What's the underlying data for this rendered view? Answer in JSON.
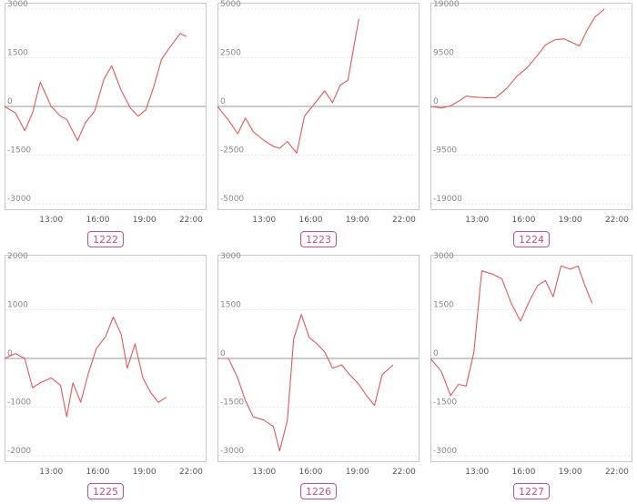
{
  "colors": {
    "line": "#e05a5a",
    "badge": "#c8508a",
    "frame": "#c9c9c9",
    "grid": "#e6e6e6",
    "zero": "#9a9a9a",
    "tick": "#888888"
  },
  "chart_data": [
    {
      "type": "line",
      "title": "",
      "label": "1222",
      "ylim": [
        -3000,
        3000
      ],
      "yticks": [
        -3000,
        -1500,
        0,
        1500,
        3000
      ],
      "xlim": [
        10,
        23
      ],
      "xticks": [
        13,
        16,
        19,
        22
      ],
      "xtick_labels": [
        "13:00",
        "16:00",
        "19:00",
        "22:00"
      ],
      "grid": true,
      "series": [
        {
          "x": [
            10,
            10.7,
            11.3,
            11.8,
            12.3,
            13,
            13.6,
            14,
            14.7,
            15.2,
            15.8,
            16.4,
            16.9,
            17.5,
            18.1,
            18.6,
            19.1,
            19.6,
            20.1,
            20.6,
            21.3,
            21.7
          ],
          "y": [
            0,
            -200,
            -750,
            -200,
            750,
            0,
            -300,
            -400,
            -1050,
            -500,
            -150,
            850,
            1250,
            500,
            -50,
            -300,
            -100,
            600,
            1450,
            1800,
            2250,
            2150
          ]
        }
      ]
    },
    {
      "type": "line",
      "title": "",
      "label": "1223",
      "ylim": [
        -5000,
        5000
      ],
      "yticks": [
        -5000,
        -2500,
        0,
        2500,
        5000
      ],
      "xlim": [
        10,
        23
      ],
      "xticks": [
        13,
        16,
        19,
        22
      ],
      "xtick_labels": [
        "13:00",
        "16:00",
        "19:00",
        "22:00"
      ],
      "grid": true,
      "series": [
        {
          "x": [
            10,
            10.7,
            11.3,
            11.8,
            12.3,
            13,
            13.6,
            14,
            14.5,
            15.1,
            15.6,
            16.2,
            16.9,
            17.4,
            17.9,
            18.4,
            18.8,
            19.1
          ],
          "y": [
            0,
            -700,
            -1400,
            -600,
            -1300,
            -1750,
            -2050,
            -2150,
            -1800,
            -2400,
            -500,
            100,
            800,
            200,
            1100,
            1350,
            3200,
            4500
          ]
        }
      ]
    },
    {
      "type": "line",
      "title": "",
      "label": "1224",
      "ylim": [
        -19000,
        19000
      ],
      "yticks": [
        -19000,
        -9500,
        0,
        9500,
        19000
      ],
      "xlim": [
        10,
        23
      ],
      "xticks": [
        13,
        16,
        19,
        22
      ],
      "xtick_labels": [
        "13:00",
        "16:00",
        "19:00",
        "22:00"
      ],
      "grid": true,
      "series": [
        {
          "x": [
            10,
            10.7,
            11.3,
            11.8,
            12.3,
            13,
            13.6,
            14.2,
            14.9,
            15.6,
            16.2,
            16.9,
            17.4,
            18,
            18.6,
            19.1,
            19.6,
            20.1,
            20.6,
            21.2
          ],
          "y": [
            0,
            -300,
            100,
            1000,
            2000,
            1800,
            1700,
            1700,
            3500,
            6000,
            7500,
            10000,
            12000,
            13000,
            13200,
            12500,
            11800,
            15000,
            17500,
            19000
          ]
        }
      ]
    },
    {
      "type": "line",
      "title": "",
      "label": "1225",
      "ylim": [
        -2000,
        2000
      ],
      "yticks": [
        -2000,
        -1000,
        0,
        1000,
        2000
      ],
      "xlim": [
        10,
        23
      ],
      "xticks": [
        13,
        16,
        19,
        22
      ],
      "xtick_labels": [
        "13:00",
        "16:00",
        "19:00",
        "22:00"
      ],
      "grid": true,
      "series": [
        {
          "x": [
            10,
            10.7,
            11.3,
            11.8,
            12.3,
            13,
            13.6,
            14,
            14.4,
            14.9,
            15.4,
            15.9,
            16.5,
            17,
            17.5,
            17.9,
            18.4,
            18.9,
            19.4,
            19.9,
            20.4
          ],
          "y": [
            0,
            100,
            0,
            -600,
            -500,
            -400,
            -550,
            -1200,
            -500,
            -900,
            -300,
            200,
            450,
            850,
            500,
            -200,
            300,
            -400,
            -700,
            -900,
            -800
          ]
        }
      ]
    },
    {
      "type": "line",
      "title": "",
      "label": "1226",
      "ylim": [
        -3000,
        3000
      ],
      "yticks": [
        -3000,
        -1500,
        0,
        1500,
        3000
      ],
      "xlim": [
        10,
        23
      ],
      "xticks": [
        13,
        16,
        19,
        22
      ],
      "xtick_labels": [
        "13:00",
        "16:00",
        "19:00",
        "22:00"
      ],
      "grid": true,
      "series": [
        {
          "x": [
            10,
            10.7,
            11.3,
            11.8,
            12.3,
            13,
            13.6,
            14,
            14.5,
            14.9,
            15.4,
            15.9,
            16.4,
            16.9,
            17.4,
            18,
            18.5,
            19.1,
            19.6,
            20.1,
            20.6,
            21.3
          ],
          "y": [
            0,
            0,
            -600,
            -1300,
            -1800,
            -1900,
            -2100,
            -2850,
            -1900,
            600,
            1350,
            650,
            450,
            200,
            -300,
            -200,
            -500,
            -800,
            -1150,
            -1450,
            -500,
            -200
          ]
        }
      ]
    },
    {
      "type": "line",
      "title": "",
      "label": "1227",
      "ylim": [
        -3000,
        3000
      ],
      "yticks": [
        -3000,
        -1500,
        0,
        1500,
        3000
      ],
      "xlim": [
        10,
        23
      ],
      "xticks": [
        13,
        16,
        19,
        22
      ],
      "xtick_labels": [
        "13:00",
        "16:00",
        "19:00",
        "22:00"
      ],
      "grid": true,
      "series": [
        {
          "x": [
            10,
            10.7,
            11.3,
            11.8,
            12.3,
            12.8,
            13.3,
            14,
            14.6,
            15.2,
            15.8,
            16.4,
            16.9,
            17.4,
            17.9,
            18.4,
            19,
            19.5,
            19.9,
            20.4
          ],
          "y": [
            0,
            -400,
            -1150,
            -800,
            -850,
            200,
            2700,
            2600,
            2450,
            1700,
            1150,
            1800,
            2250,
            2400,
            1900,
            2850,
            2750,
            2850,
            2300,
            1700
          ]
        }
      ]
    }
  ]
}
